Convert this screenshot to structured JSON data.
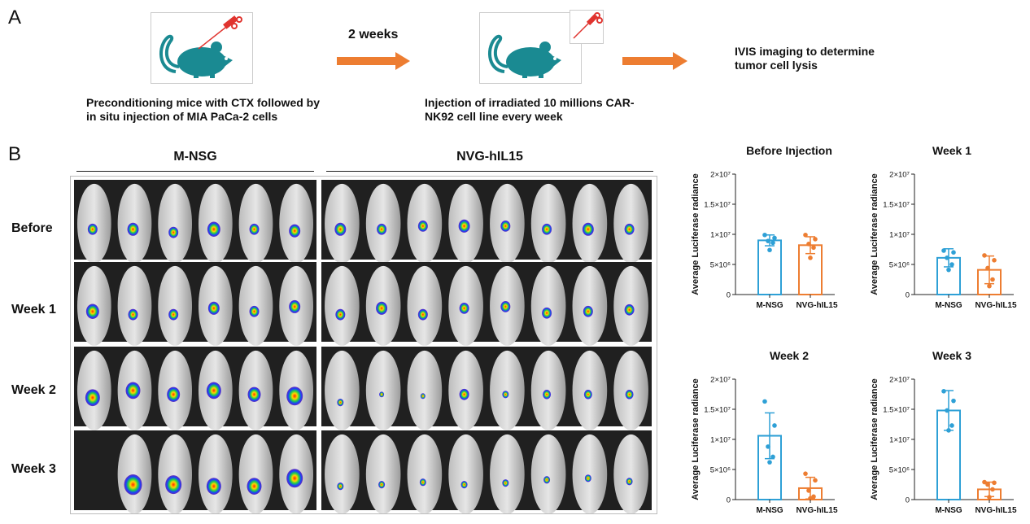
{
  "panel_a": {
    "letter": "A",
    "arrow1_label": "2 weeks",
    "step1_text_line1": "Preconditioning mice with CTX followed by",
    "step1_text_line2": "in situ injection of MIA PaCa-2 cells",
    "step2_text_line1": "Injection of irradiated 10 millions CAR-",
    "step2_text_line2": "NK92 cell line every week",
    "step3_text_line1": "IVIS imaging to determine",
    "step3_text_line2": "tumor cell lysis",
    "colors": {
      "mouse": "#1a8a92",
      "syringe": "#e0342f",
      "arrow": "#ed7d31"
    }
  },
  "panel_b": {
    "letter": "B",
    "group1": "M-NSG",
    "group2": "NVG-hIL15",
    "rows": [
      "Before",
      "Week 1",
      "Week 2",
      "Week 3"
    ]
  },
  "chart_data": [
    {
      "type": "bar",
      "title": "Before Injection",
      "ylabel": "Average Luciferase radiance",
      "categories": [
        "M-NSG",
        "NVG-hIL15"
      ],
      "values": [
        9000000,
        8200000
      ],
      "error": [
        900000,
        1400000
      ],
      "points": [
        [
          9900000,
          9400000,
          8900000,
          8600000,
          7400000
        ],
        [
          9900000,
          9200000,
          8400000,
          7800000,
          6100000
        ]
      ],
      "ylim": [
        0,
        20000000
      ],
      "yticks": [
        0,
        5000000,
        10000000,
        15000000,
        20000000
      ],
      "ytick_labels": [
        "0",
        "5×10⁶",
        "1×10⁷",
        "1.5×10⁷",
        "2×10⁷"
      ],
      "colors": [
        "#2ea0d6",
        "#ed7d31"
      ]
    },
    {
      "type": "bar",
      "title": "Week 1",
      "ylabel": "Average Luciferase radiance",
      "categories": [
        "M-NSG",
        "NVG-hIL15"
      ],
      "values": [
        6100000,
        4100000
      ],
      "error": [
        1500000,
        2300000
      ],
      "points": [
        [
          7300000,
          7000000,
          6100000,
          5000000,
          4100000
        ],
        [
          6500000,
          5700000,
          4400000,
          2500000,
          1400000
        ]
      ],
      "ylim": [
        0,
        20000000
      ],
      "yticks": [
        0,
        5000000,
        10000000,
        15000000,
        20000000
      ],
      "ytick_labels": [
        "0",
        "5×10⁶",
        "1×10⁷",
        "1.5×10⁷",
        "2×10⁷"
      ],
      "colors": [
        "#2ea0d6",
        "#ed7d31"
      ]
    },
    {
      "type": "bar",
      "title": "Week 2",
      "ylabel": "Average Luciferase radiance",
      "categories": [
        "M-NSG",
        "NVG-hIL15"
      ],
      "values": [
        10600000,
        1900000
      ],
      "error": [
        3800000,
        1800000
      ],
      "points": [
        [
          16300000,
          12300000,
          8800000,
          7100000,
          6200000
        ],
        [
          4300000,
          3200000,
          1500000,
          500000,
          200000
        ]
      ],
      "ylim": [
        0,
        20000000
      ],
      "yticks": [
        0,
        5000000,
        10000000,
        15000000,
        20000000
      ],
      "ytick_labels": [
        "0",
        "5×10⁶",
        "1×10⁷",
        "1.5×10⁷",
        "2×10⁷"
      ],
      "colors": [
        "#2ea0d6",
        "#ed7d31"
      ]
    },
    {
      "type": "bar",
      "title": "Week 3",
      "ylabel": "Average Luciferase radiance",
      "categories": [
        "M-NSG",
        "NVG-hIL15"
      ],
      "values": [
        14800000,
        1700000
      ],
      "error": [
        3300000,
        1200000
      ],
      "points": [
        [
          18000000,
          16400000,
          14800000,
          12300000,
          11500000
        ],
        [
          2900000,
          2800000,
          2500000,
          1700000,
          400000
        ]
      ],
      "ylim": [
        0,
        20000000
      ],
      "yticks": [
        0,
        5000000,
        10000000,
        15000000,
        20000000
      ],
      "ytick_labels": [
        "0",
        "5×10⁶",
        "1×10⁷",
        "1.5×10⁷",
        "2×10⁷"
      ],
      "colors": [
        "#2ea0d6",
        "#ed7d31"
      ]
    }
  ]
}
